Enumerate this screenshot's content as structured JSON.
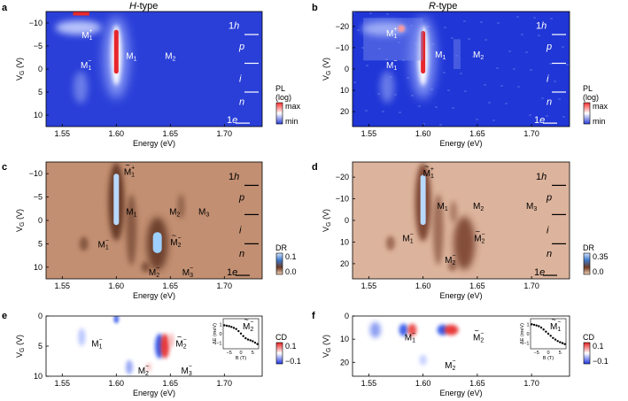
{
  "figure": {
    "column_titles": [
      "H-type",
      "R-type"
    ]
  },
  "chart_data": [
    {
      "panel": "a",
      "type": "heatmap",
      "title": "H-type",
      "xlabel": "Energy (eV)",
      "ylabel": "VG (V)",
      "xticks": [
        "1.55",
        "1.60",
        "1.65",
        "1.70"
      ],
      "yticks": [
        "-10",
        "-5",
        "0",
        "5",
        "10"
      ],
      "xlim": [
        1.535,
        1.735
      ],
      "ylim": [
        -12.5,
        12.5
      ],
      "colorbar": {
        "label": "PL",
        "sublabel": "(log)",
        "max": "max",
        "min": "min"
      },
      "region_labels": [
        "1h",
        "p",
        "i",
        "n",
        "1e"
      ],
      "peak_labels": [
        {
          "text": "M1+",
          "e": 1.568,
          "v": -7.5
        },
        {
          "text": "M1-",
          "e": 1.567,
          "v": -1.0
        },
        {
          "text": "M1",
          "e": 1.609,
          "v": -3.0
        },
        {
          "text": "M2",
          "e": 1.645,
          "v": -3.0
        }
      ]
    },
    {
      "panel": "b",
      "type": "heatmap",
      "title": "R-type",
      "xlabel": "Energy (eV)",
      "ylabel": "VG (V)",
      "xticks": [
        "1.55",
        "1.60",
        "1.65",
        "1.70"
      ],
      "yticks": [
        "-20",
        "-10",
        "0",
        "10",
        "20"
      ],
      "xlim": [
        1.535,
        1.735
      ],
      "ylim": [
        -27,
        27
      ],
      "colorbar": {
        "label": "PL",
        "sublabel": "(log)",
        "max": "max",
        "min": "min"
      },
      "region_labels": [
        "1h",
        "p",
        "i",
        "n",
        "1e"
      ],
      "peak_labels": [
        {
          "text": "M1+",
          "e": 1.566,
          "v": -17
        },
        {
          "text": "M1-",
          "e": 1.566,
          "v": -2
        },
        {
          "text": "M1",
          "e": 1.611,
          "v": -7
        },
        {
          "text": "M2",
          "e": 1.646,
          "v": -7
        }
      ]
    },
    {
      "panel": "c",
      "type": "heatmap",
      "xlabel": "Energy (eV)",
      "ylabel": "VG (V)",
      "xticks": [
        "1.55",
        "1.60",
        "1.65",
        "1.70"
      ],
      "yticks": [
        "-10",
        "-5",
        "0",
        "5",
        "10"
      ],
      "xlim": [
        1.535,
        1.735
      ],
      "ylim": [
        -12.5,
        12.5
      ],
      "colorbar": {
        "label": "DR",
        "ticks": [
          "0.1",
          "0.0"
        ],
        "range": [
          0.0,
          0.1
        ]
      },
      "region_labels": [
        "1h",
        "p",
        "i",
        "n",
        "1e"
      ],
      "peak_labels": [
        {
          "text": "M~1+",
          "e": 1.607,
          "v": -10.5
        },
        {
          "text": "M1",
          "e": 1.609,
          "v": -2.0
        },
        {
          "text": "M2",
          "e": 1.649,
          "v": -2.0
        },
        {
          "text": "M3",
          "e": 1.676,
          "v": -2.0
        },
        {
          "text": "M1-",
          "e": 1.583,
          "v": 5.0
        },
        {
          "text": "M~2-",
          "e": 1.65,
          "v": 4.5
        },
        {
          "text": "M2-",
          "e": 1.63,
          "v": 11.0
        },
        {
          "text": "M3-",
          "e": 1.661,
          "v": 11.0
        }
      ]
    },
    {
      "panel": "d",
      "type": "heatmap",
      "xlabel": "Energy (eV)",
      "ylabel": "VG (V)",
      "xticks": [
        "1.55",
        "1.60",
        "1.65",
        "1.70"
      ],
      "yticks": [
        "-20",
        "-10",
        "0",
        "10",
        "20"
      ],
      "xlim": [
        1.535,
        1.735
      ],
      "ylim": [
        -27,
        27
      ],
      "colorbar": {
        "label": "DR",
        "ticks": [
          "0.35",
          "0.0"
        ],
        "range": [
          0.0,
          0.35
        ]
      },
      "region_labels": [
        "1h",
        "p",
        "i",
        "n",
        "1e"
      ],
      "peak_labels": [
        {
          "text": "M~1+",
          "e": 1.6,
          "v": -22
        },
        {
          "text": "M1",
          "e": 1.613,
          "v": -7
        },
        {
          "text": "M2",
          "e": 1.646,
          "v": -7
        },
        {
          "text": "M3",
          "e": 1.695,
          "v": -7
        },
        {
          "text": "M1-",
          "e": 1.581,
          "v": 8
        },
        {
          "text": "M~2-",
          "e": 1.647,
          "v": 8
        },
        {
          "text": "M2-",
          "e": 1.62,
          "v": 18
        }
      ]
    },
    {
      "panel": "e",
      "type": "heatmap",
      "xlabel": "Energy (eV)",
      "ylabel": "VG (V)",
      "xticks": [
        "1.55",
        "1.60",
        "1.65",
        "1.70"
      ],
      "yticks": [
        "0",
        "5",
        "10"
      ],
      "xlim": [
        1.535,
        1.735
      ],
      "ylim": [
        0,
        10
      ],
      "colorbar": {
        "label": "CD",
        "ticks": [
          "0.1",
          "-0.1"
        ],
        "range": [
          -0.1,
          0.1
        ]
      },
      "peak_labels": [
        {
          "text": "M1-",
          "e": 1.577,
          "v": 4.5
        },
        {
          "text": "M~2-",
          "e": 1.655,
          "v": 4.5
        },
        {
          "text": "M2-",
          "e": 1.62,
          "v": 9.0
        },
        {
          "text": "M3-",
          "e": 1.66,
          "v": 9.0
        }
      ],
      "inset": {
        "type": "scatter",
        "label": "M~2-",
        "xlabel": "B (T)",
        "ylabel": "ΔE (meV)",
        "xticks": [
          "-5",
          "0",
          "5"
        ],
        "yticks": [
          "-1",
          "0",
          "1"
        ],
        "xlim": [
          -7.5,
          7.5
        ],
        "ylim": [
          -1.6,
          1.6
        ],
        "x": [
          -7,
          -6,
          -5,
          -4,
          -3,
          -2,
          -1,
          0,
          1,
          2,
          3,
          4,
          5,
          6,
          7
        ],
        "y": [
          0.9,
          0.85,
          0.8,
          0.72,
          0.62,
          0.5,
          0.28,
          0.02,
          -0.25,
          -0.48,
          -0.62,
          -0.7,
          -0.8,
          -0.95,
          -1.1
        ]
      }
    },
    {
      "panel": "f",
      "type": "heatmap",
      "xlabel": "Energy (eV)",
      "ylabel": "VG (V)",
      "xticks": [
        "1.55",
        "1.60",
        "1.65",
        "1.70"
      ],
      "yticks": [
        "0",
        "10",
        "20"
      ],
      "xlim": [
        1.535,
        1.735
      ],
      "ylim": [
        0,
        26
      ],
      "colorbar": {
        "label": "CD",
        "ticks": [
          "0.1",
          "-0.1"
        ],
        "range": [
          -0.1,
          0.1
        ]
      },
      "peak_labels": [
        {
          "text": "M1-",
          "e": 1.583,
          "v": 9
        },
        {
          "text": "M~2-",
          "e": 1.646,
          "v": 9
        },
        {
          "text": "M2-",
          "e": 1.62,
          "v": 21
        }
      ],
      "inset": {
        "type": "scatter",
        "label": "M~1-",
        "xlabel": "B (T)",
        "ylabel": "ΔE (meV)",
        "xticks": [
          "-5",
          "0",
          "5"
        ],
        "yticks": [
          "-1",
          "0",
          "1"
        ],
        "xlim": [
          -7.5,
          7.5
        ],
        "ylim": [
          -1.6,
          1.6
        ],
        "x": [
          -7,
          -6,
          -5,
          -4,
          -3,
          -2,
          -1,
          0,
          1,
          2,
          3,
          4,
          5,
          6,
          7
        ],
        "y": [
          1.0,
          0.95,
          0.88,
          0.8,
          0.65,
          0.45,
          0.22,
          0.0,
          -0.22,
          -0.45,
          -0.62,
          -0.78,
          -0.9,
          -1.0,
          -1.1
        ]
      }
    }
  ]
}
